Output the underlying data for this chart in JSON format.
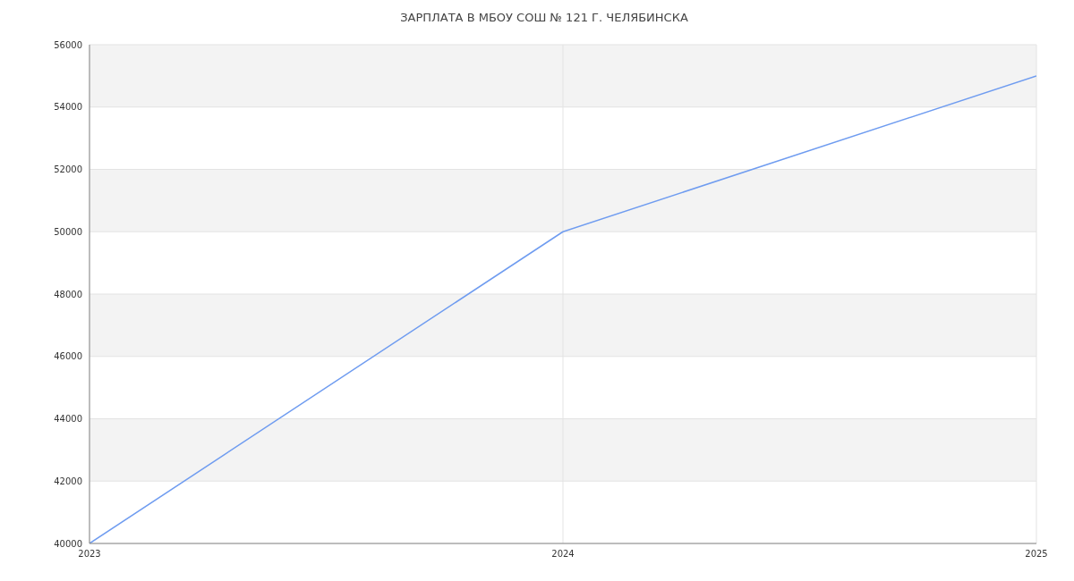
{
  "chart_data": {
    "type": "line",
    "title": "ЗАРПЛАТА В МБОУ СОШ № 121 Г. ЧЕЛЯБИНСКА",
    "x": [
      2023,
      2024,
      2025
    ],
    "series": [
      {
        "color": "#6f9cf0",
        "values": [
          40000,
          50000,
          55000
        ]
      }
    ],
    "xlim": [
      2023,
      2025
    ],
    "xticks": [
      2023,
      2024,
      2025
    ],
    "ylim": [
      40000,
      56000
    ],
    "yticks": [
      40000,
      42000,
      44000,
      46000,
      48000,
      50000,
      52000,
      54000,
      56000
    ],
    "grid": true,
    "marker": "none",
    "line_style": "solid",
    "legend": false
  }
}
